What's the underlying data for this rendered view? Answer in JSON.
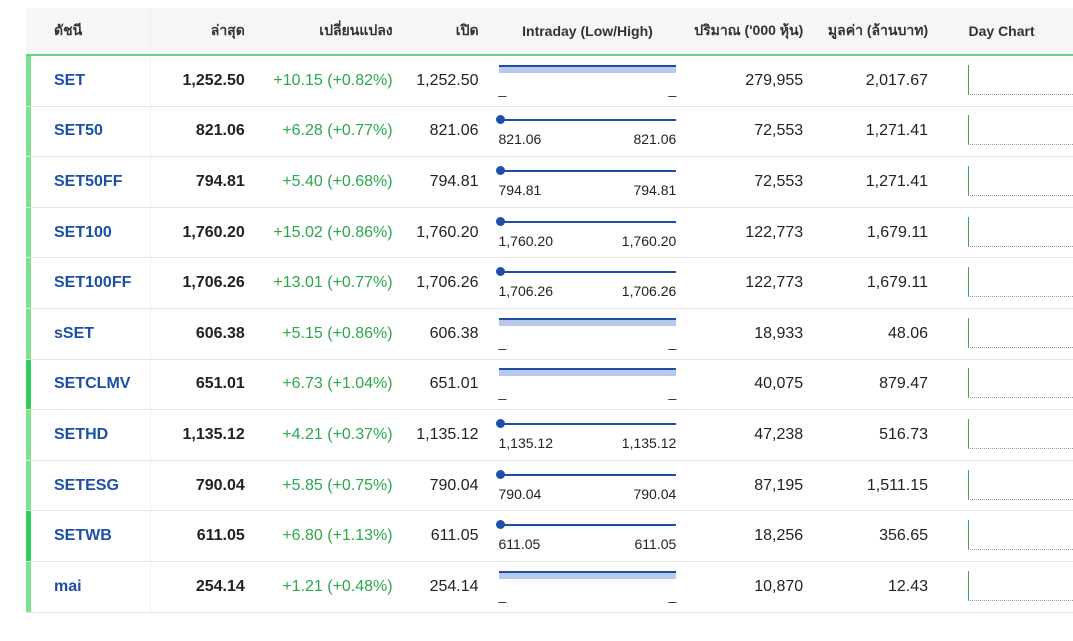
{
  "headers": {
    "index": "ดัชนี",
    "last": "ล่าสุด",
    "change": "เปลี่ยนแปลง",
    "open": "เปิด",
    "intraday": "Intraday (Low/High)",
    "volume": "ปริมาณ ('000 หุ้น)",
    "value": "มูลค่า (ล้านบาท)",
    "day_chart": "Day Chart"
  },
  "colors": {
    "accent_green": "#2ecc5a",
    "accent_green_light": "#7ee28d",
    "name_blue": "#1d4ea8",
    "up_green": "#2aa84a"
  },
  "rows": [
    {
      "name": "SET",
      "last": "1,252.50",
      "change": "+10.15 (+0.82%)",
      "open": "1,252.50",
      "intraday_mode": "bar",
      "low": "_",
      "high": "_",
      "volume": "279,955",
      "value": "2,017.67",
      "accent": "light"
    },
    {
      "name": "SET50",
      "last": "821.06",
      "change": "+6.28 (+0.77%)",
      "open": "821.06",
      "intraday_mode": "dot",
      "low": "821.06",
      "high": "821.06",
      "volume": "72,553",
      "value": "1,271.41",
      "accent": "light"
    },
    {
      "name": "SET50FF",
      "last": "794.81",
      "change": "+5.40 (+0.68%)",
      "open": "794.81",
      "intraday_mode": "dot",
      "low": "794.81",
      "high": "794.81",
      "volume": "72,553",
      "value": "1,271.41",
      "accent": "light"
    },
    {
      "name": "SET100",
      "last": "1,760.20",
      "change": "+15.02 (+0.86%)",
      "open": "1,760.20",
      "intraday_mode": "dot",
      "low": "1,760.20",
      "high": "1,760.20",
      "volume": "122,773",
      "value": "1,679.11",
      "accent": "light"
    },
    {
      "name": "SET100FF",
      "last": "1,706.26",
      "change": "+13.01 (+0.77%)",
      "open": "1,706.26",
      "intraday_mode": "dot",
      "low": "1,706.26",
      "high": "1,706.26",
      "volume": "122,773",
      "value": "1,679.11",
      "accent": "light"
    },
    {
      "name": "sSET",
      "last": "606.38",
      "change": "+5.15 (+0.86%)",
      "open": "606.38",
      "intraday_mode": "bar",
      "low": "_",
      "high": "_",
      "volume": "18,933",
      "value": "48.06",
      "accent": "light"
    },
    {
      "name": "SETCLMV",
      "last": "651.01",
      "change": "+6.73 (+1.04%)",
      "open": "651.01",
      "intraday_mode": "bar",
      "low": "_",
      "high": "_",
      "volume": "40,075",
      "value": "879.47",
      "accent": "dark"
    },
    {
      "name": "SETHD",
      "last": "1,135.12",
      "change": "+4.21 (+0.37%)",
      "open": "1,135.12",
      "intraday_mode": "dot",
      "low": "1,135.12",
      "high": "1,135.12",
      "volume": "47,238",
      "value": "516.73",
      "accent": "light"
    },
    {
      "name": "SETESG",
      "last": "790.04",
      "change": "+5.85 (+0.75%)",
      "open": "790.04",
      "intraday_mode": "dot",
      "low": "790.04",
      "high": "790.04",
      "volume": "87,195",
      "value": "1,511.15",
      "accent": "light"
    },
    {
      "name": "SETWB",
      "last": "611.05",
      "change": "+6.80 (+1.13%)",
      "open": "611.05",
      "intraday_mode": "dot",
      "low": "611.05",
      "high": "611.05",
      "volume": "18,256",
      "value": "356.65",
      "accent": "dark"
    },
    {
      "name": "mai",
      "last": "254.14",
      "change": "+1.21 (+0.48%)",
      "open": "254.14",
      "intraday_mode": "bar",
      "low": "_",
      "high": "_",
      "volume": "10,870",
      "value": "12.43",
      "accent": "light"
    }
  ]
}
